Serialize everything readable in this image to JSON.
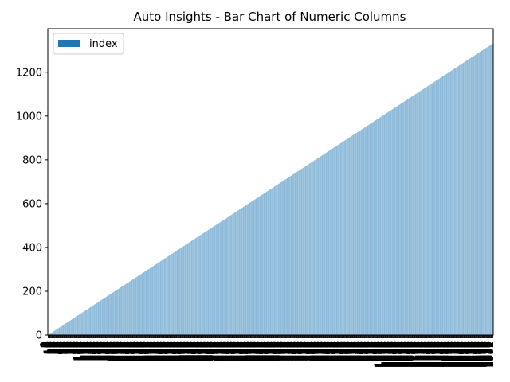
{
  "chart_data": {
    "type": "bar",
    "title": "Auto Insights - Bar Chart of Numeric Columns",
    "xlabel": "",
    "ylabel": "",
    "x": {
      "start": 0,
      "end": 1332,
      "count": 1333
    },
    "series": [
      {
        "name": "index",
        "values_rule": "value equals row index",
        "start": 0,
        "end": 1332,
        "color": "#1f77b4"
      }
    ],
    "ylim": [
      0,
      1399
    ],
    "yticks": [
      0,
      200,
      400,
      600,
      800,
      1000,
      1200
    ],
    "legend": {
      "position": "top-left"
    },
    "grid": false
  },
  "colors": {
    "bar": "#1f77b4",
    "axis": "#000000",
    "background": "#ffffff"
  }
}
